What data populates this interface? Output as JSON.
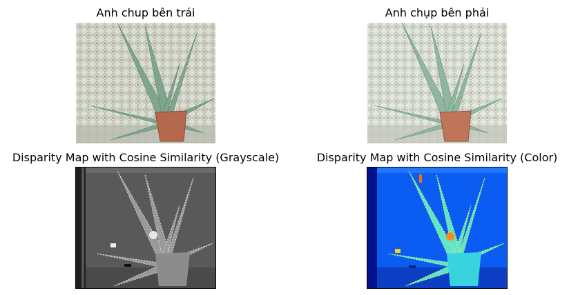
{
  "figure": {
    "panels": [
      {
        "title": "Anh chup bên trái",
        "kind": "photo-left"
      },
      {
        "title": "Anh chụp bên phải",
        "kind": "photo-right"
      },
      {
        "title": "Disparity Map with Cosine Similarity (Grayscale)",
        "kind": "disparity-gray"
      },
      {
        "title": "Disparity Map with Cosine Similarity (Color)",
        "kind": "disparity-color"
      }
    ]
  },
  "colors": {
    "wallpaper_light": "#dfe3da",
    "leaf": "#8ab49a",
    "pot": "#b86a4e",
    "jet_background": "#0a5cf2",
    "jet_plant": "#5fe6c8"
  }
}
